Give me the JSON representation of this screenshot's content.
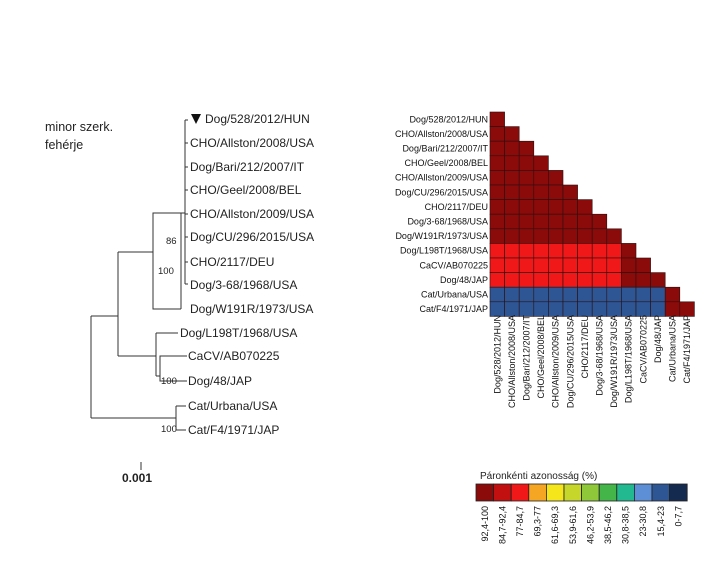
{
  "tree": {
    "title_lines": [
      "minor szerk.",
      "fehérje"
    ],
    "leaves": [
      "Dog/528/2012/HUN",
      "CHO/Allston/2008/USA",
      "Dog/Bari/212/2007/IT",
      "CHO/Geel/2008/BEL",
      "CHO/Allston/2009/USA",
      "Dog/CU/296/2015/USA",
      "CHO/2117/DEU",
      "Dog/3-68/1968/USA",
      "Dog/W191R/1973/USA",
      "Dog/L198T/1968/USA",
      "CaCV/AB070225",
      "Dog/48/JAP",
      "Cat/Urbana/USA",
      "Cat/F4/1971/JAP"
    ],
    "highlighted_leaf": "Dog/528/2012/HUN",
    "bootstrap": [
      "86",
      "100",
      "100",
      "100"
    ],
    "scale_label": "0.001"
  },
  "heatmap": {
    "row_labels": [
      "Dog/528/2012/HUN",
      "CHO/Allston/2008/USA",
      "Dog/Bari/212/2007/IT",
      "CHO/Geel/2008/BEL",
      "CHO/Allston/2009/USA",
      "Dog/CU/296/2015/USA",
      "CHO/2117/DEU",
      "Dog/3-68/1968/USA",
      "Dog/W191R/1973/USA",
      "Dog/L198T/1968/USA",
      "CaCV/AB070225",
      "Dog/48/JAP",
      "Cat/Urbana/USA",
      "Cat/F4/1971/JAP"
    ],
    "column_labels": [
      "Dog/528/2012/HUN",
      "CHO/Allston/2008/USA",
      "Dog/Bari/212/2007/IT",
      "CHO/Geel/2008/BEL",
      "CHO/Allston/2009/USA",
      "Dog/CU/296/2015/USA",
      "CHO/2117/DEU",
      "Dog/3-68/1968/USA",
      "Dog/W191R/1973/USA",
      "Dog/L198T/1968/USA",
      "CaCV/AB070225",
      "Dog/48/JAP",
      "Cat/Urbana/USA",
      "Cat/F4/1971/JAP"
    ],
    "cell_bins": [
      [
        0
      ],
      [
        0,
        0
      ],
      [
        0,
        0,
        0
      ],
      [
        0,
        0,
        0,
        0
      ],
      [
        0,
        0,
        0,
        0,
        0
      ],
      [
        0,
        0,
        0,
        0,
        0,
        0
      ],
      [
        0,
        0,
        0,
        0,
        0,
        0,
        0
      ],
      [
        0,
        0,
        0,
        0,
        0,
        0,
        0,
        0
      ],
      [
        0,
        0,
        0,
        0,
        0,
        0,
        0,
        0,
        0
      ],
      [
        2,
        2,
        2,
        2,
        2,
        2,
        2,
        2,
        2,
        0
      ],
      [
        2,
        2,
        2,
        2,
        2,
        2,
        2,
        2,
        2,
        0,
        0
      ],
      [
        2,
        2,
        2,
        2,
        2,
        2,
        2,
        2,
        2,
        0,
        0,
        0
      ],
      [
        10,
        10,
        10,
        10,
        10,
        10,
        10,
        10,
        10,
        10,
        10,
        10,
        0
      ],
      [
        10,
        10,
        10,
        10,
        10,
        10,
        10,
        10,
        10,
        10,
        10,
        10,
        0,
        0
      ]
    ]
  },
  "legend": {
    "title": "Páronkénti azonosság (%)",
    "bins": [
      {
        "label": "92,4-100",
        "color": "#8b0a0a"
      },
      {
        "label": "84,7-92,4",
        "color": "#c20f0f"
      },
      {
        "label": "77-84,7",
        "color": "#f01818"
      },
      {
        "label": "69,3-77",
        "color": "#f5a623"
      },
      {
        "label": "61,6-69,3",
        "color": "#f5e61c"
      },
      {
        "label": "53,9-61,6",
        "color": "#c6d62a"
      },
      {
        "label": "46,2-53,9",
        "color": "#8fc93a"
      },
      {
        "label": "38,5-46,2",
        "color": "#44b649"
      },
      {
        "label": "30,8-38,5",
        "color": "#22b890"
      },
      {
        "label": "23-30,8",
        "color": "#5c8fd6"
      },
      {
        "label": "15,4-23",
        "color": "#2e5694"
      },
      {
        "label": "0-7,7",
        "color": "#142a4e"
      }
    ]
  }
}
